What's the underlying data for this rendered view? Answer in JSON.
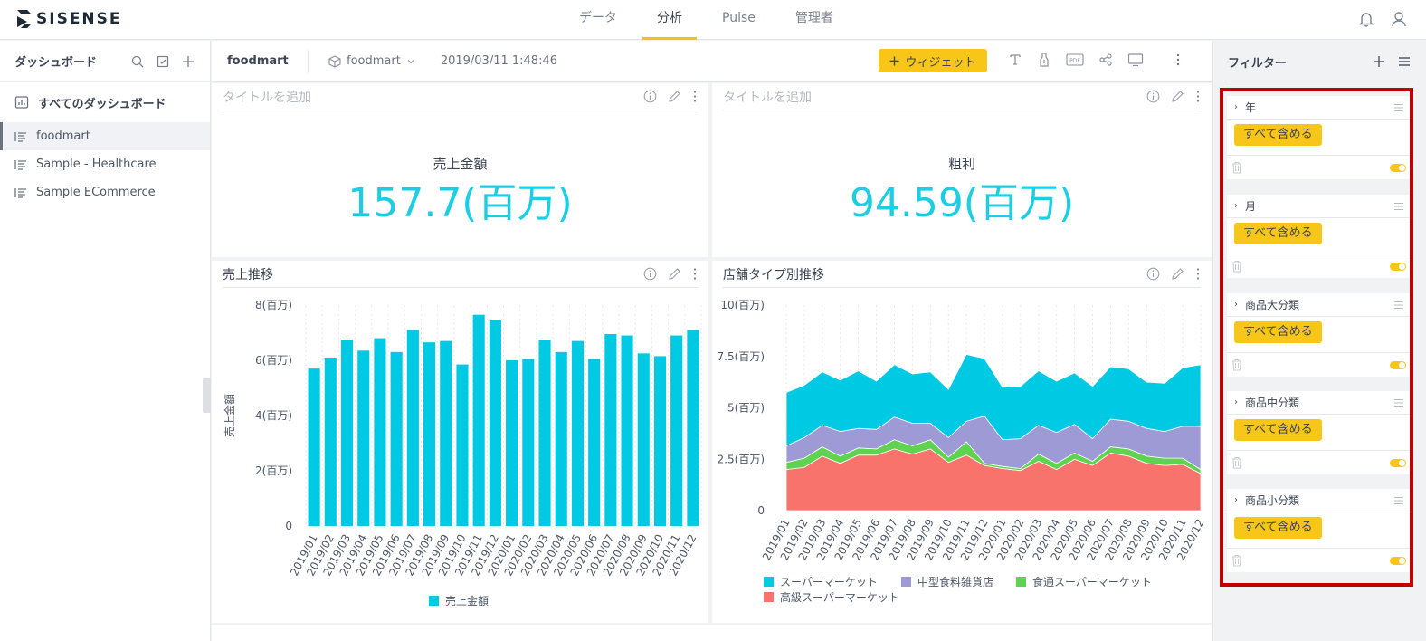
{
  "app": {
    "logo_text": "SISENSE"
  },
  "topnav": {
    "items": [
      {
        "label": "データ",
        "active": false
      },
      {
        "label": "分析",
        "active": true
      },
      {
        "label": "Pulse",
        "active": false
      },
      {
        "label": "管理者",
        "active": false
      }
    ]
  },
  "sidebar": {
    "title": "ダッシュボード",
    "all_label": "すべてのダッシュボード",
    "items": [
      {
        "label": "foodmart",
        "active": true
      },
      {
        "label": "Sample - Healthcare",
        "active": false
      },
      {
        "label": "Sample ECommerce",
        "active": false
      }
    ]
  },
  "toolbar": {
    "dashboard_title": "foodmart",
    "cube_name": "foodmart",
    "timestamp": "2019/03/11 1:48:46",
    "widget_button": "ウィジェット",
    "pdf_label": "PDF"
  },
  "widgets": {
    "kpi1": {
      "header": "タイトルを追加",
      "label": "売上金額",
      "value": "157.7(百万)"
    },
    "kpi2": {
      "header": "タイトルを追加",
      "label": "粗利",
      "value": "94.59(百万)"
    },
    "chart1": {
      "header": "売上推移"
    },
    "chart2": {
      "header": "店舗タイプ別推移"
    }
  },
  "filters": {
    "title": "フィルター",
    "items": [
      {
        "label": "年",
        "badge": "すべて含める"
      },
      {
        "label": "月",
        "badge": "すべて含める"
      },
      {
        "label": "商品大分類",
        "badge": "すべて含める"
      },
      {
        "label": "商品中分類",
        "badge": "すべて含める"
      },
      {
        "label": "商品小分類",
        "badge": "すべて含める"
      }
    ]
  },
  "colors": {
    "accent": "#f8c519",
    "cyan": "#00c9e3",
    "purple": "#9d9ad6",
    "green": "#5fd34f",
    "red": "#f8736c",
    "frame": "#c00000"
  },
  "chart_data": [
    {
      "type": "bar",
      "ylabel": "売上金額",
      "yticks": [
        "0",
        "2(百万)",
        "4(百万)",
        "6(百万)",
        "8(百万)"
      ],
      "ylim": [
        0,
        8
      ],
      "categories": [
        "2019/01",
        "2019/02",
        "2019/03",
        "2019/04",
        "2019/05",
        "2019/06",
        "2019/07",
        "2019/08",
        "2019/09",
        "2019/10",
        "2019/11",
        "2019/12",
        "2020/01",
        "2020/02",
        "2020/03",
        "2020/04",
        "2020/05",
        "2020/06",
        "2020/07",
        "2020/08",
        "2020/09",
        "2020/10",
        "2020/11",
        "2020/12"
      ],
      "series": [
        {
          "name": "売上金額",
          "color": "#00c9e3",
          "values": [
            5.7,
            6.1,
            6.75,
            6.35,
            6.8,
            6.3,
            7.1,
            6.65,
            6.7,
            5.85,
            7.65,
            7.45,
            6.0,
            6.05,
            6.75,
            6.3,
            6.7,
            6.05,
            6.95,
            6.9,
            6.25,
            6.15,
            6.9,
            7.1
          ]
        }
      ],
      "grid": true,
      "legend": "bottom"
    },
    {
      "type": "area",
      "stacked": true,
      "yticks": [
        "0",
        "2.5(百万)",
        "5(百万)",
        "7.5(百万)",
        "10(百万)"
      ],
      "ylim": [
        0,
        10
      ],
      "categories": [
        "2019/01",
        "2019/02",
        "2019/03",
        "2019/04",
        "2019/05",
        "2019/06",
        "2019/07",
        "2019/08",
        "2019/09",
        "2019/10",
        "2019/11",
        "2019/12",
        "2020/01",
        "2020/02",
        "2020/03",
        "2020/04",
        "2020/05",
        "2020/06",
        "2020/07",
        "2020/08",
        "2020/09",
        "2020/10",
        "2020/11",
        "2020/12"
      ],
      "series": [
        {
          "name": "高級スーパーマーケット",
          "color": "#f8736c",
          "values": [
            2.0,
            2.1,
            2.65,
            2.3,
            2.7,
            2.7,
            3.0,
            2.75,
            3.0,
            2.35,
            2.7,
            2.2,
            2.05,
            1.95,
            2.4,
            2.0,
            2.5,
            2.2,
            2.8,
            2.65,
            2.3,
            2.2,
            2.25,
            1.8
          ]
        },
        {
          "name": "食通スーパーマーケット",
          "color": "#5fd34f",
          "values": [
            0.35,
            0.45,
            0.45,
            0.35,
            0.35,
            0.3,
            0.45,
            0.4,
            0.45,
            0.25,
            0.65,
            0.1,
            0.1,
            0.1,
            0.35,
            0.3,
            0.3,
            0.2,
            0.3,
            0.35,
            0.35,
            0.35,
            0.3,
            0.2
          ]
        },
        {
          "name": "中型食料雑貨店",
          "color": "#9d9ad6",
          "values": [
            0.8,
            1.0,
            1.05,
            1.2,
            0.95,
            0.95,
            1.1,
            1.1,
            0.8,
            0.95,
            1.0,
            2.3,
            1.3,
            1.45,
            1.4,
            1.5,
            1.4,
            1.1,
            1.35,
            1.35,
            1.35,
            1.3,
            1.55,
            2.1
          ]
        },
        {
          "name": "スーパーマーケット",
          "color": "#00c9e3",
          "values": [
            2.6,
            2.55,
            2.6,
            2.5,
            2.8,
            2.35,
            2.55,
            2.4,
            2.5,
            2.35,
            3.25,
            2.8,
            2.55,
            2.55,
            2.65,
            2.5,
            2.5,
            2.55,
            2.55,
            2.55,
            2.25,
            2.35,
            2.85,
            3.0
          ]
        }
      ],
      "legend_order": [
        "スーパーマーケット",
        "中型食料雑貨店",
        "食通スーパーマーケット",
        "高級スーパーマーケット"
      ],
      "grid": true,
      "legend": "bottom"
    }
  ]
}
